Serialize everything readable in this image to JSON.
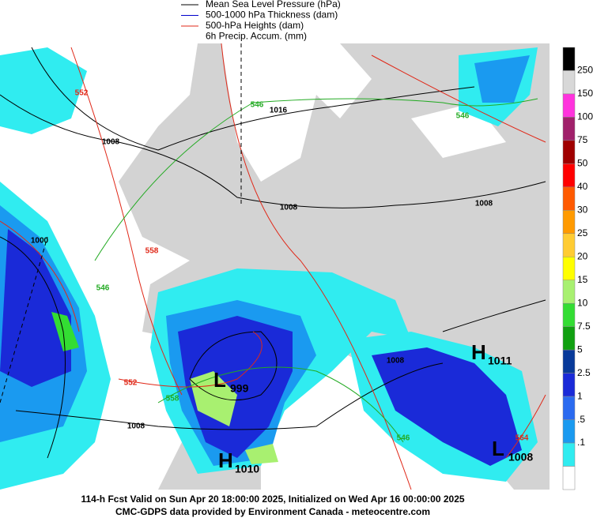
{
  "legend": [
    {
      "label": "Mean Sea Level Pressure (hPa)",
      "color": "#000000"
    },
    {
      "label": "500-1000 hPa Thickness (dam)",
      "color": "#0000cc"
    },
    {
      "label": "500-hPa Heights (dam)",
      "color": "#e02818"
    },
    {
      "label": "6h Precip. Accum. (mm)"
    }
  ],
  "colorbar_colors": [
    "#000000",
    "#d8d8d8",
    "#ff33dd",
    "#a0206a",
    "#a00000",
    "#ff0000",
    "#ff5a00",
    "#ff9a00",
    "#ffcc33",
    "#ffff00",
    "#a8f070",
    "#33dd33",
    "#10a010",
    "#083a9a",
    "#1a2ad8",
    "#2a6af0",
    "#1a9af0",
    "#30ecf0",
    "#ffffff"
  ],
  "colorbar_labels": [
    "250",
    "150",
    "100",
    "75",
    "50",
    "40",
    "30",
    "25",
    "20",
    "15",
    "10",
    "7.5",
    "5",
    "2.5",
    "1",
    ".5",
    ".1"
  ],
  "map_labels": [
    {
      "text": "1016",
      "color": "#000000"
    },
    {
      "text": "1008",
      "color": "#000000"
    },
    {
      "text": "1008",
      "color": "#000000"
    },
    {
      "text": "1008",
      "color": "#000000"
    },
    {
      "text": "1008",
      "color": "#000000"
    },
    {
      "text": "1008",
      "color": "#000000"
    },
    {
      "text": "1000",
      "color": "#000000"
    },
    {
      "text": "546",
      "color": "#22aa22"
    },
    {
      "text": "546",
      "color": "#22aa22"
    },
    {
      "text": "546",
      "color": "#22aa22"
    },
    {
      "text": "546",
      "color": "#22aa22"
    },
    {
      "text": "552",
      "color": "#e02818"
    },
    {
      "text": "552",
      "color": "#e02818"
    },
    {
      "text": "558",
      "color": "#e02818"
    },
    {
      "text": "564",
      "color": "#e02818"
    },
    {
      "text": "558",
      "color": "#22aa22"
    }
  ],
  "centers": [
    {
      "letter": "H",
      "value": "1011"
    },
    {
      "letter": "L",
      "value": "1008"
    },
    {
      "letter": "L",
      "value": "999"
    },
    {
      "letter": "H",
      "value": "1010"
    }
  ],
  "footer": [
    "114-h Fcst Valid on Sun Apr 20 18:00:00 2025, Initialized on Wed Apr 16 00:00:00 2025",
    "CMC-GDPS data provided by Environment Canada - meteocentre.com"
  ]
}
